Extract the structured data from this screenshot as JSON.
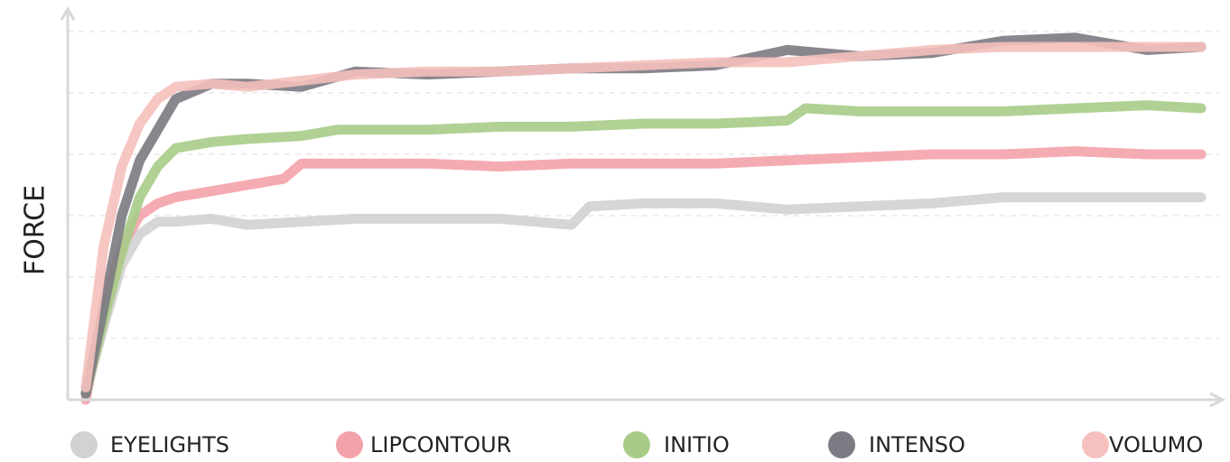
{
  "chart_data": {
    "type": "line",
    "ylabel": "FORCE",
    "xlim": [
      0,
      64
    ],
    "ylim": [
      0,
      6
    ],
    "yticks": [
      1,
      2,
      3,
      4,
      5,
      6
    ],
    "grid": true,
    "legend": "bottom",
    "series": [
      {
        "name": "EYELIGHTS",
        "color": "#d2d2d2",
        "x": [
          1,
          2,
          3,
          4,
          5,
          6,
          8,
          10,
          13,
          16,
          20,
          24,
          28,
          29,
          32,
          36,
          40,
          44,
          48,
          52,
          56,
          60,
          63
        ],
        "values": [
          0.1,
          1.2,
          2.2,
          2.7,
          2.9,
          2.9,
          2.95,
          2.85,
          2.9,
          2.95,
          2.95,
          2.95,
          2.85,
          3.15,
          3.2,
          3.2,
          3.1,
          3.15,
          3.2,
          3.3,
          3.3,
          3.3,
          3.3
        ]
      },
      {
        "name": "LIPCONTOUR",
        "color": "#f4a2aa",
        "x": [
          1,
          2,
          3,
          4,
          5,
          6,
          8,
          10,
          12,
          13,
          16,
          20,
          24,
          28,
          32,
          36,
          40,
          44,
          48,
          52,
          56,
          60,
          63
        ],
        "values": [
          0.0,
          1.5,
          2.5,
          3.0,
          3.2,
          3.3,
          3.4,
          3.5,
          3.6,
          3.85,
          3.85,
          3.85,
          3.8,
          3.85,
          3.85,
          3.85,
          3.9,
          3.95,
          4.0,
          4.0,
          4.05,
          4.0,
          4.0
        ]
      },
      {
        "name": "INITIO",
        "color": "#a8cc88",
        "x": [
          1,
          2,
          3,
          4,
          5,
          6,
          8,
          10,
          13,
          15,
          20,
          24,
          28,
          32,
          36,
          40,
          41,
          44,
          48,
          52,
          56,
          60,
          63
        ],
        "values": [
          0.1,
          1.3,
          2.4,
          3.3,
          3.8,
          4.1,
          4.2,
          4.25,
          4.3,
          4.4,
          4.4,
          4.45,
          4.45,
          4.5,
          4.5,
          4.55,
          4.75,
          4.7,
          4.7,
          4.7,
          4.75,
          4.8,
          4.75
        ]
      },
      {
        "name": "INTENSO",
        "color": "#7c7a82",
        "x": [
          1,
          2,
          3,
          4,
          5,
          6,
          8,
          10,
          13,
          16,
          20,
          24,
          28,
          32,
          36,
          40,
          44,
          48,
          52,
          56,
          60,
          63
        ],
        "values": [
          0.1,
          1.5,
          3.0,
          3.9,
          4.4,
          4.9,
          5.15,
          5.15,
          5.1,
          5.35,
          5.3,
          5.35,
          5.4,
          5.4,
          5.45,
          5.7,
          5.6,
          5.65,
          5.85,
          5.9,
          5.7,
          5.75
        ]
      },
      {
        "name": "VOLUMO",
        "color": "#f5c0bd",
        "x": [
          1,
          2,
          3,
          4,
          5,
          6,
          8,
          10,
          13,
          16,
          20,
          24,
          28,
          32,
          36,
          40,
          44,
          48,
          52,
          56,
          60,
          63
        ],
        "values": [
          0.2,
          2.5,
          3.8,
          4.5,
          4.9,
          5.1,
          5.15,
          5.1,
          5.2,
          5.3,
          5.35,
          5.35,
          5.4,
          5.45,
          5.5,
          5.5,
          5.6,
          5.7,
          5.75,
          5.75,
          5.75,
          5.75
        ]
      }
    ]
  }
}
